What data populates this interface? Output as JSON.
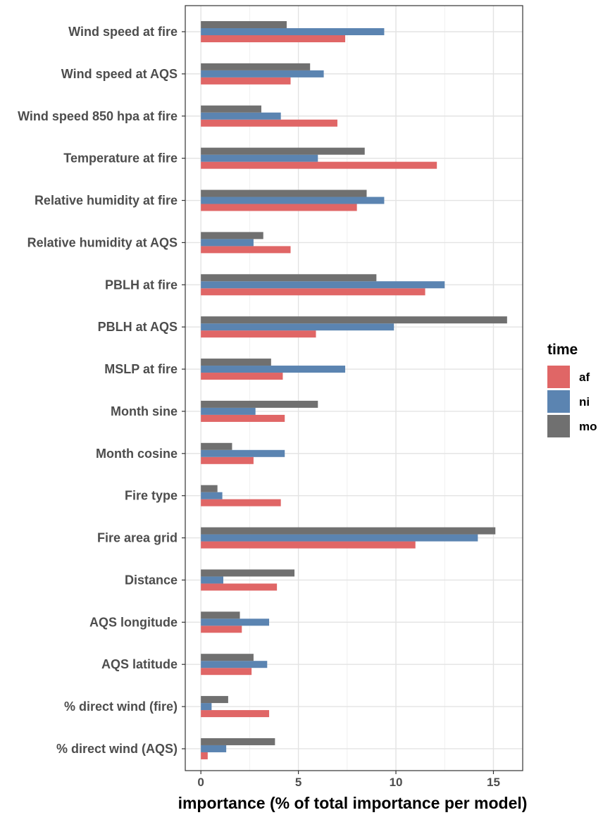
{
  "chart_data": {
    "type": "bar",
    "orientation": "horizontal",
    "categories": [
      "Wind speed at fire",
      "Wind speed at AQS",
      "Wind speed 850 hpa at fire",
      "Temperature at fire",
      "Relative humidity at fire",
      "Relative humidity at AQS",
      "PBLH at fire",
      "PBLH at AQS",
      "MSLP at fire",
      "Month sine",
      "Month cosine",
      "Fire type",
      "Fire area grid",
      "Distance",
      "AQS longitude",
      "AQS latitude",
      "% direct wind (fire)",
      "% direct wind (AQS)"
    ],
    "series": [
      {
        "name": "af",
        "color": "#E06666",
        "values": [
          7.4,
          4.6,
          7.0,
          12.1,
          8.0,
          4.6,
          11.5,
          5.9,
          4.2,
          4.3,
          2.7,
          4.1,
          11.0,
          3.9,
          2.1,
          2.6,
          3.5,
          0.35
        ]
      },
      {
        "name": "ni",
        "color": "#5B84B1",
        "values": [
          9.4,
          6.3,
          4.1,
          6.0,
          9.4,
          2.7,
          12.5,
          9.9,
          7.4,
          2.8,
          4.3,
          1.1,
          14.2,
          1.15,
          3.5,
          3.4,
          0.55,
          1.3
        ]
      },
      {
        "name": "mo",
        "color": "#707070",
        "values": [
          4.4,
          5.6,
          3.1,
          8.4,
          8.5,
          3.2,
          9.0,
          15.7,
          3.6,
          6.0,
          1.6,
          0.85,
          15.1,
          4.8,
          2.0,
          2.7,
          1.4,
          3.8
        ]
      }
    ],
    "xlabel": "importance (% of total importance per model)",
    "ylabel": "",
    "xlim": [
      -0.8,
      16.5
    ],
    "xticks": [
      "0",
      "5",
      "10",
      "15"
    ],
    "grid": true,
    "legend": {
      "title": "time",
      "position": "right",
      "entries": [
        "af",
        "ni",
        "mo"
      ]
    }
  }
}
